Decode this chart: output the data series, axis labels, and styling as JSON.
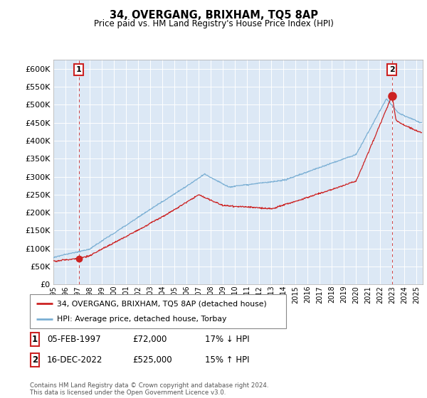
{
  "title": "34, OVERGANG, BRIXHAM, TQ5 8AP",
  "subtitle": "Price paid vs. HM Land Registry's House Price Index (HPI)",
  "ylabel_ticks": [
    "£0",
    "£50K",
    "£100K",
    "£150K",
    "£200K",
    "£250K",
    "£300K",
    "£350K",
    "£400K",
    "£450K",
    "£500K",
    "£550K",
    "£600K"
  ],
  "ytick_values": [
    0,
    50000,
    100000,
    150000,
    200000,
    250000,
    300000,
    350000,
    400000,
    450000,
    500000,
    550000,
    600000
  ],
  "ylim": [
    0,
    625000
  ],
  "xlim_start": 1995.0,
  "xlim_end": 2025.5,
  "xticks": [
    1995,
    1996,
    1997,
    1998,
    1999,
    2000,
    2001,
    2002,
    2003,
    2004,
    2005,
    2006,
    2007,
    2008,
    2009,
    2010,
    2011,
    2012,
    2013,
    2014,
    2015,
    2016,
    2017,
    2018,
    2019,
    2020,
    2021,
    2022,
    2023,
    2024,
    2025
  ],
  "hpi_color": "#7aafd4",
  "price_color": "#cc2222",
  "dashed_line_color": "#cc2222",
  "plot_bg_color": "#dce8f5",
  "marker1_x": 1997.1,
  "marker1_y": 72000,
  "marker2_x": 2022.96,
  "marker2_y": 525000,
  "label1": "1",
  "label2": "2",
  "legend_line1": "34, OVERGANG, BRIXHAM, TQ5 8AP (detached house)",
  "legend_line2": "HPI: Average price, detached house, Torbay",
  "table_row1": [
    "1",
    "05-FEB-1997",
    "£72,000",
    "17% ↓ HPI"
  ],
  "table_row2": [
    "2",
    "16-DEC-2022",
    "£525,000",
    "15% ↑ HPI"
  ],
  "footer": "Contains HM Land Registry data © Crown copyright and database right 2024.\nThis data is licensed under the Open Government Licence v3.0."
}
